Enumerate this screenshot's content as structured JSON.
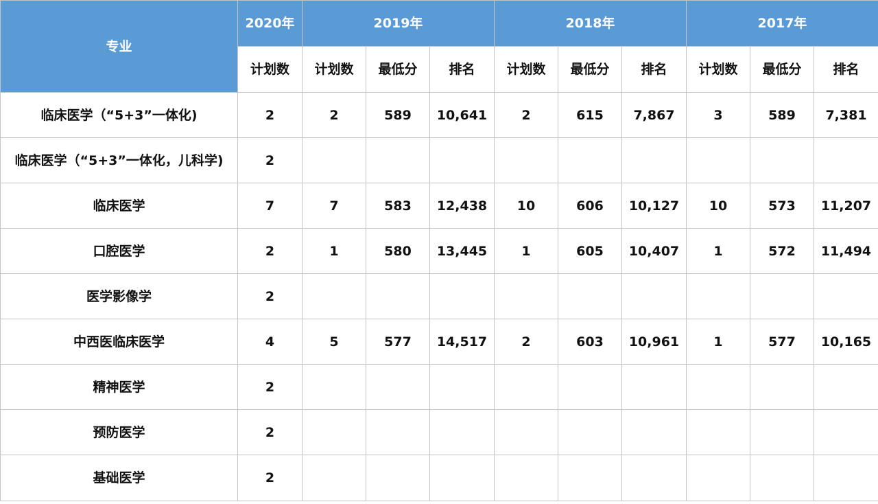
{
  "header": {
    "major": "专业",
    "years": [
      {
        "year": "2020年",
        "columns": [
          "计划数"
        ]
      },
      {
        "year": "2019年",
        "columns": [
          "计划数",
          "最低分",
          "排名"
        ]
      },
      {
        "year": "2018年",
        "columns": [
          "计划数",
          "最低分",
          "排名"
        ]
      },
      {
        "year": "2017年",
        "columns": [
          "计划数",
          "最低分",
          "排名"
        ]
      }
    ]
  },
  "rows": [
    {
      "major": "临床医学（“5+3”一体化)",
      "cells": [
        "2",
        "2",
        "589",
        "10,641",
        "2",
        "615",
        "7,867",
        "3",
        "589",
        "7,381"
      ]
    },
    {
      "major": "临床医学（“5+3”一体化，儿科学)",
      "cells": [
        "2",
        null,
        null,
        null,
        null,
        null,
        null,
        null,
        null,
        null
      ]
    },
    {
      "major": "临床医学",
      "cells": [
        "7",
        "7",
        "583",
        "12,438",
        "10",
        "606",
        "10,127",
        "10",
        "573",
        "11,207"
      ]
    },
    {
      "major": "口腔医学",
      "cells": [
        "2",
        "1",
        "580",
        "13,445",
        "1",
        "605",
        "10,407",
        "1",
        "572",
        "11,494"
      ]
    },
    {
      "major": "医学影像学",
      "cells": [
        "2",
        null,
        null,
        null,
        null,
        null,
        null,
        null,
        null,
        null
      ]
    },
    {
      "major": "中西医临床医学",
      "cells": [
        "4",
        "5",
        "577",
        "14,517",
        "2",
        "603",
        "10,961",
        "1",
        "577",
        "10,165"
      ]
    },
    {
      "major": "精神医学",
      "cells": [
        "2",
        null,
        null,
        null,
        null,
        null,
        null,
        null,
        null,
        null
      ]
    },
    {
      "major": "预防医学",
      "cells": [
        "2",
        null,
        null,
        null,
        null,
        null,
        null,
        null,
        null,
        null
      ]
    },
    {
      "major": "基础医学",
      "cells": [
        "2",
        null,
        null,
        null,
        null,
        null,
        null,
        null,
        null,
        null
      ]
    }
  ]
}
